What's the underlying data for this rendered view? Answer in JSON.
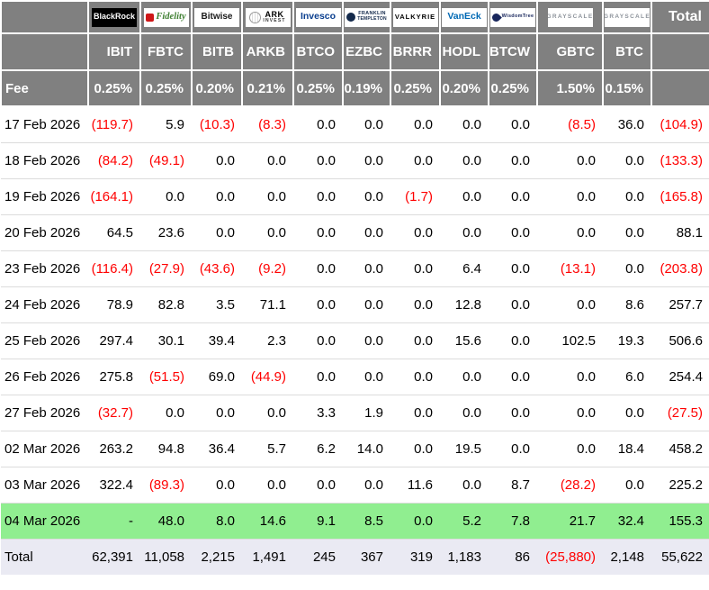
{
  "chart_data": {
    "type": "table",
    "providers": [
      {
        "brand": "blackrock",
        "text": "BlackRock"
      },
      {
        "brand": "fidelity",
        "text": "Fidelity",
        "icon": "fidelity-pinwheel-icon"
      },
      {
        "brand": "bitwise",
        "text": "Bitwise"
      },
      {
        "brand": "ark",
        "text": "ARK",
        "sub": "INVEST",
        "icon": "ark-globe-icon"
      },
      {
        "brand": "invesco",
        "text": "Invesco"
      },
      {
        "brand": "franklin",
        "text": "FRANKLIN",
        "sub": "TEMPLETON",
        "icon": "franklin-head-icon"
      },
      {
        "brand": "valkyrie",
        "text": "VALKYRIE"
      },
      {
        "brand": "vaneck",
        "text": "VanEck"
      },
      {
        "brand": "wisdomtree",
        "text": "WisdomTree",
        "icon": "wisdomtree-tree-icon"
      },
      {
        "brand": "grayscale",
        "text": "GRAYSCALE"
      },
      {
        "brand": "grayscale",
        "text": "GRAYSCALE"
      }
    ],
    "total_header_label": "Total",
    "tickers": [
      "IBIT",
      "FBTC",
      "BITB",
      "ARKB",
      "BTCO",
      "EZBC",
      "BRRR",
      "HODL",
      "BTCW",
      "GBTC",
      "BTC"
    ],
    "fee_label": "Fee",
    "fees": [
      "0.25%",
      "0.25%",
      "0.20%",
      "0.21%",
      "0.25%",
      "0.19%",
      "0.25%",
      "0.20%",
      "0.25%",
      "1.50%",
      "0.15%"
    ],
    "rows": [
      {
        "cells": [
          "17 Feb 2026",
          "(119.7)",
          "5.9",
          "(10.3)",
          "(8.3)",
          "0.0",
          "0.0",
          "0.0",
          "0.0",
          "0.0",
          "(8.5)",
          "36.0",
          "(104.9)"
        ]
      },
      {
        "cells": [
          "18 Feb 2026",
          "(84.2)",
          "(49.1)",
          "0.0",
          "0.0",
          "0.0",
          "0.0",
          "0.0",
          "0.0",
          "0.0",
          "0.0",
          "0.0",
          "(133.3)"
        ]
      },
      {
        "cells": [
          "19 Feb 2026",
          "(164.1)",
          "0.0",
          "0.0",
          "0.0",
          "0.0",
          "0.0",
          "(1.7)",
          "0.0",
          "0.0",
          "0.0",
          "0.0",
          "(165.8)"
        ]
      },
      {
        "cells": [
          "20 Feb 2026",
          "64.5",
          "23.6",
          "0.0",
          "0.0",
          "0.0",
          "0.0",
          "0.0",
          "0.0",
          "0.0",
          "0.0",
          "0.0",
          "88.1"
        ]
      },
      {
        "cells": [
          "23 Feb 2026",
          "(116.4)",
          "(27.9)",
          "(43.6)",
          "(9.2)",
          "0.0",
          "0.0",
          "0.0",
          "6.4",
          "0.0",
          "(13.1)",
          "0.0",
          "(203.8)"
        ]
      },
      {
        "cells": [
          "24 Feb 2026",
          "78.9",
          "82.8",
          "3.5",
          "71.1",
          "0.0",
          "0.0",
          "0.0",
          "12.8",
          "0.0",
          "0.0",
          "8.6",
          "257.7"
        ]
      },
      {
        "cells": [
          "25 Feb 2026",
          "297.4",
          "30.1",
          "39.4",
          "2.3",
          "0.0",
          "0.0",
          "0.0",
          "15.6",
          "0.0",
          "102.5",
          "19.3",
          "506.6"
        ]
      },
      {
        "cells": [
          "26 Feb 2026",
          "275.8",
          "(51.5)",
          "69.0",
          "(44.9)",
          "0.0",
          "0.0",
          "0.0",
          "0.0",
          "0.0",
          "0.0",
          "6.0",
          "254.4"
        ]
      },
      {
        "cells": [
          "27 Feb 2026",
          "(32.7)",
          "0.0",
          "0.0",
          "0.0",
          "3.3",
          "1.9",
          "0.0",
          "0.0",
          "0.0",
          "0.0",
          "0.0",
          "(27.5)"
        ]
      },
      {
        "cells": [
          "02 Mar 2026",
          "263.2",
          "94.8",
          "36.4",
          "5.7",
          "6.2",
          "14.0",
          "0.0",
          "19.5",
          "0.0",
          "0.0",
          "18.4",
          "458.2"
        ]
      },
      {
        "cells": [
          "03 Mar 2026",
          "322.4",
          "(89.3)",
          "0.0",
          "0.0",
          "0.0",
          "0.0",
          "11.6",
          "0.0",
          "8.7",
          "(28.2)",
          "0.0",
          "225.2"
        ]
      },
      {
        "cells": [
          "04 Mar 2026",
          "-",
          "48.0",
          "8.0",
          "14.6",
          "9.1",
          "8.5",
          "0.0",
          "5.2",
          "7.8",
          "21.7",
          "32.4",
          "155.3"
        ],
        "highlight": "latest"
      },
      {
        "cells": [
          "Total",
          "62,391",
          "11,058",
          "2,215",
          "1,491",
          "245",
          "367",
          "319",
          "1,183",
          "86",
          "(25,880)",
          "2,148",
          "55,622"
        ],
        "highlight": "total"
      }
    ]
  },
  "colors": {
    "header_bg": "#808080",
    "negative": "#ff0000",
    "latest_row_bg": "#90ee90",
    "total_row_bg": "#eaeaf3"
  }
}
